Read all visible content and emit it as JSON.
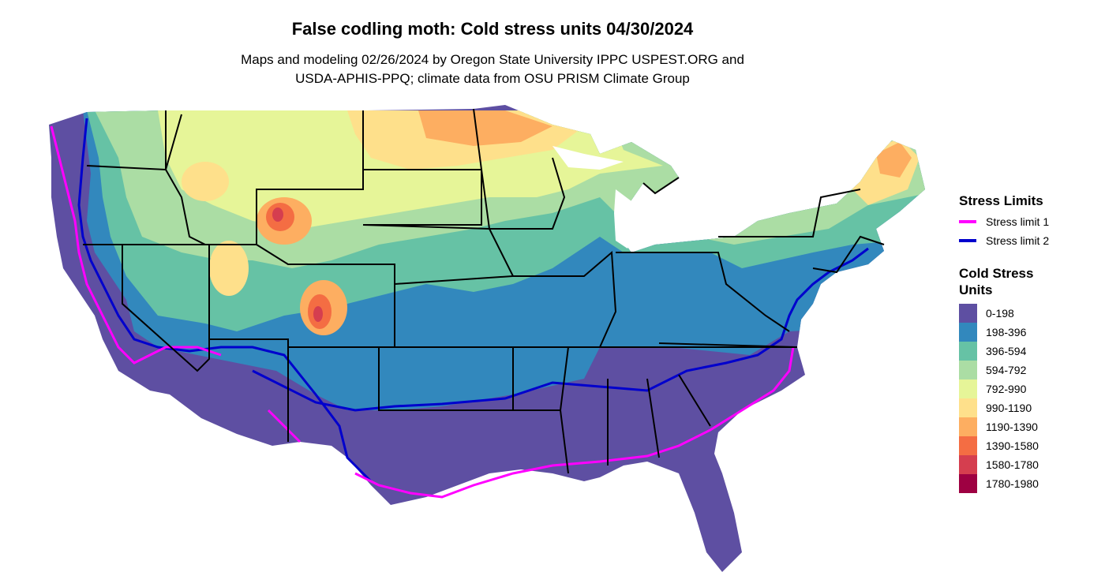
{
  "title": "False codling moth: Cold stress units 04/30/2024",
  "subtitle_line1": "Maps and modeling 02/26/2024 by Oregon State University IPPC USPEST.ORG and",
  "subtitle_line2": "USDA-APHIS-PPQ; climate data from OSU PRISM Climate Group",
  "stress_legend": {
    "title": "Stress Limits",
    "items": [
      {
        "label": "Stress limit 1",
        "color": "#ff00ff"
      },
      {
        "label": "Stress limit 2",
        "color": "#0000cd"
      }
    ]
  },
  "units_legend": {
    "title_line1": "Cold Stress",
    "title_line2": "Units",
    "items": [
      {
        "label": "0-198",
        "color": "#5e4fa2"
      },
      {
        "label": "198-396",
        "color": "#3288bd"
      },
      {
        "label": "396-594",
        "color": "#66c2a5"
      },
      {
        "label": "594-792",
        "color": "#abdda4"
      },
      {
        "label": "792-990",
        "color": "#e6f598"
      },
      {
        "label": "990-1190",
        "color": "#fee08b"
      },
      {
        "label": "1190-1390",
        "color": "#fdae61"
      },
      {
        "label": "1390-1580",
        "color": "#f46d43"
      },
      {
        "label": "1580-1780",
        "color": "#d53e4f"
      },
      {
        "label": "1780-1980",
        "color": "#9e0142"
      }
    ]
  }
}
